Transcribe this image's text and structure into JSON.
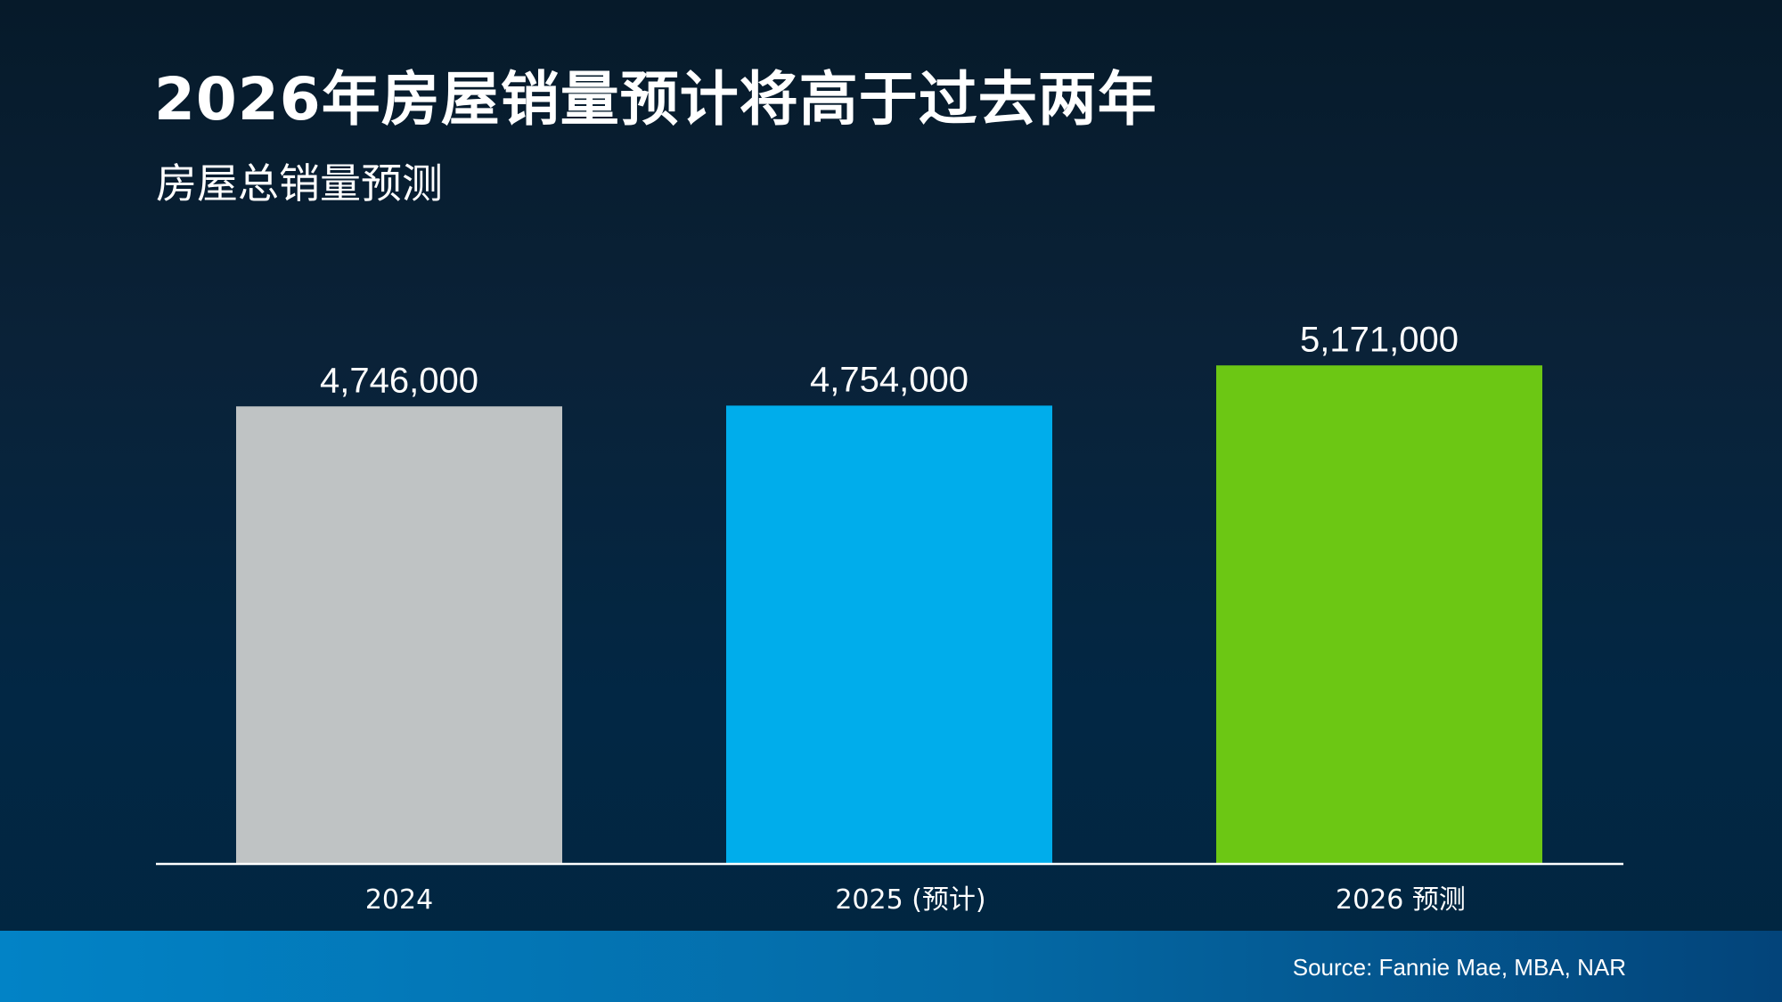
{
  "title": "2026年房屋销量预计将高于过去两年",
  "subtitle": "房屋总销量预测",
  "chart_data": {
    "type": "bar",
    "categories": [
      "2024",
      "2025 (预计)",
      "2026 预测"
    ],
    "values": [
      4746000,
      4754000,
      5171000
    ],
    "value_labels": [
      "4,746,000",
      "4,754,000",
      "5,171,000"
    ],
    "colors": [
      "#bfc3c4",
      "#00adeb",
      "#6cc714"
    ],
    "title": "房屋总销量预测",
    "xlabel": "",
    "ylabel": "",
    "ylim": [
      0,
      5820000
    ],
    "grid": false,
    "legend": "none"
  },
  "footer": {
    "source": "Source: Fannie Mae, MBA, NAR"
  }
}
